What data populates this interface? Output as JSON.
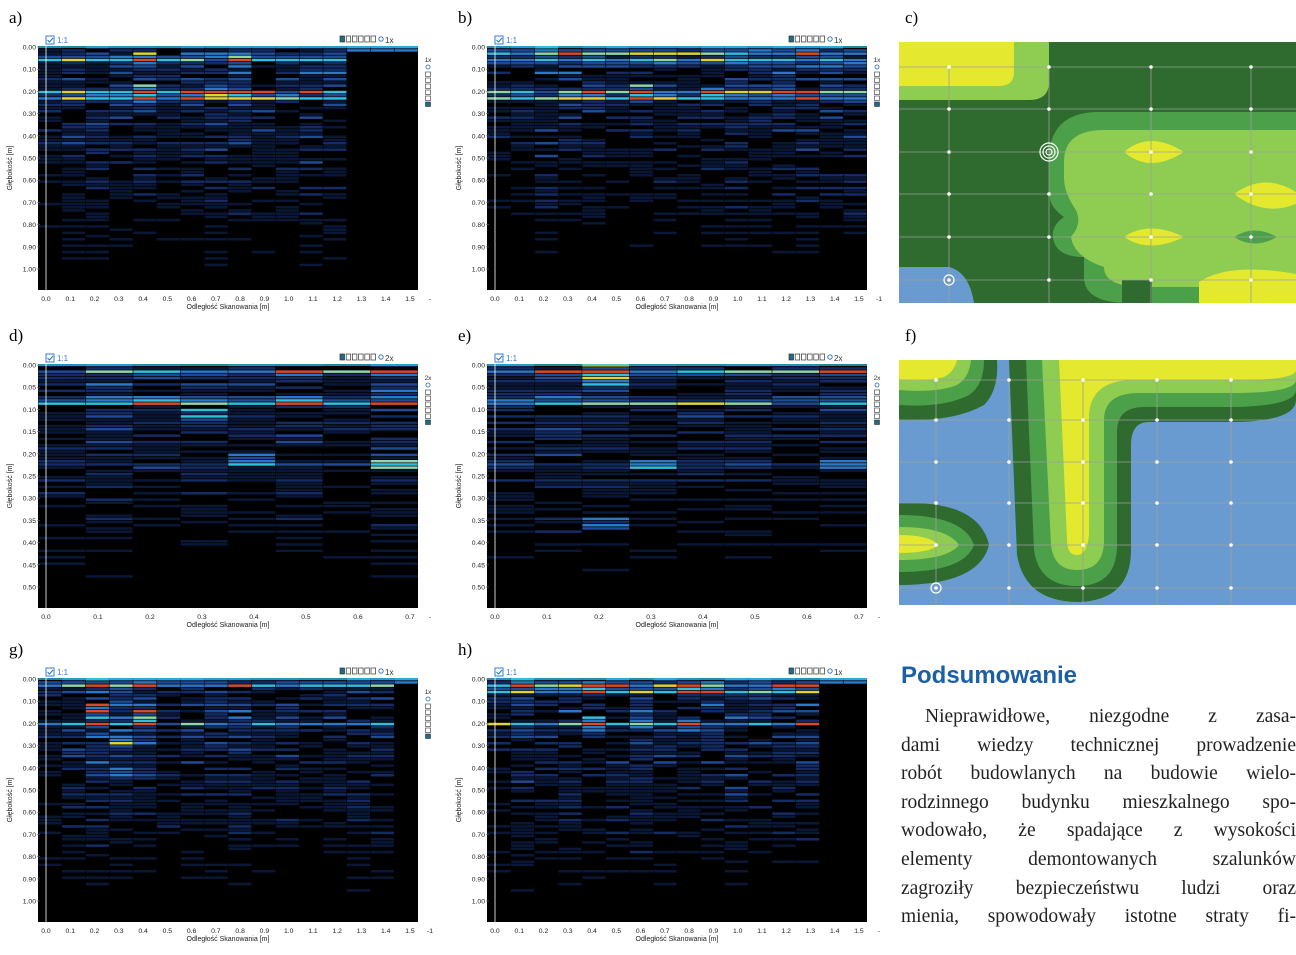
{
  "panels": [
    {
      "label": "a)",
      "ylabel": "Głębokość [m]",
      "xlabel": "Odległość Skanowania [m]",
      "checkbox": "1:1",
      "zoom": "1x",
      "yticks": [
        "0.00",
        "0.10",
        "0.20",
        "0.30",
        "0.40",
        "0.50",
        "0.60",
        "0.70",
        "0.80",
        "0.90",
        "1.00"
      ],
      "xticks": [
        "0.0",
        "0.1",
        "0.2",
        "0.3",
        "0.4",
        "0.5",
        "0.6",
        "0.7",
        "0.8",
        "0.9",
        "1.0",
        "1.1",
        "1.2",
        "1.3",
        "1.4",
        "1.5"
      ],
      "xend": "-",
      "ncols": 16,
      "dataCols": 13,
      "seed": 11,
      "hot": [
        {
          "c": 4,
          "r": 0.205,
          "k": 3
        },
        {
          "c": 8,
          "r": 0.205,
          "k": 2
        },
        {
          "c": 6,
          "r": 0.215,
          "k": 2
        },
        {
          "c": 4,
          "r": 0.05,
          "k": 2
        },
        {
          "c": 8,
          "r": 0.05,
          "k": 2
        },
        {
          "c": 7,
          "r": 0.2,
          "k": 2
        }
      ],
      "bands": [
        0.05,
        0.2,
        0.22
      ],
      "side": true
    },
    {
      "label": "b)",
      "ylabel": "Głębokość [m]",
      "xlabel": "Odległość Skanowania [m]",
      "checkbox": "1:1",
      "zoom": "1x",
      "yticks": [
        "0.00",
        "0.10",
        "0.20",
        "0.30",
        "0.40",
        "0.50",
        "0.60",
        "0.70",
        "0.80",
        "0.90",
        "1.00"
      ],
      "xticks": [
        "0.0",
        "0.1",
        "0.2",
        "0.3",
        "0.4",
        "0.5",
        "0.6",
        "0.7",
        "0.8",
        "0.9",
        "1.0",
        "1.1",
        "1.2",
        "1.3",
        "1.4",
        "1.5"
      ],
      "xend": "-1",
      "ncols": 16,
      "dataCols": 16,
      "seed": 23,
      "hot": [
        {
          "c": 6,
          "r": 0.205,
          "k": 3
        },
        {
          "c": 9,
          "r": 0.2,
          "k": 2
        },
        {
          "c": 4,
          "r": 0.205,
          "k": 2
        },
        {
          "c": 12,
          "r": 0.2,
          "k": 2
        }
      ],
      "bands": [
        0.02,
        0.06,
        0.2,
        0.22
      ],
      "side": true
    },
    {
      "label": "d)",
      "ylabel": "Głębokość [m]",
      "xlabel": "Odległość Skanowania [m]",
      "checkbox": "1:1",
      "zoom": "2x",
      "yticks": [
        "0.00",
        "0.05",
        "0.10",
        "0.15",
        "0.20",
        "0.25",
        "0.30",
        "0.35",
        "0.40",
        "0.45",
        "0.50"
      ],
      "xticks": [
        "0.0",
        "0.1",
        "0.2",
        "0.3",
        "0.4",
        "0.5",
        "0.6",
        "0.7"
      ],
      "xend": "-",
      "ncols": 8,
      "dataCols": 8,
      "seed": 37,
      "hot": [
        {
          "c": 3,
          "r": 0.11,
          "k": 2
        },
        {
          "c": 4,
          "r": 0.21,
          "k": 2
        },
        {
          "c": 7,
          "r": 0.22,
          "k": 2
        },
        {
          "c": 2,
          "r": 0.08,
          "k": 2
        },
        {
          "c": 5,
          "r": 0.08,
          "k": 2
        }
      ],
      "bands": [
        0.02,
        0.08,
        0.22
      ],
      "side": true
    },
    {
      "label": "e)",
      "ylabel": "Głębokość [m]",
      "xlabel": "Odległość Skanowania [m]",
      "checkbox": "1:1",
      "zoom": "2x",
      "yticks": [
        "0.00",
        "0.05",
        "0.10",
        "0.15",
        "0.20",
        "0.25",
        "0.30",
        "0.35",
        "0.40",
        "0.45",
        "0.50"
      ],
      "xticks": [
        "0.0",
        "0.1",
        "0.2",
        "0.3",
        "0.4",
        "0.5",
        "0.6",
        "0.7"
      ],
      "xend": "-",
      "ncols": 8,
      "dataCols": 8,
      "seed": 41,
      "hot": [
        {
          "c": 2,
          "r": 0.02,
          "k": 4
        },
        {
          "c": 2,
          "r": 0.35,
          "k": 2
        },
        {
          "c": 3,
          "r": 0.22,
          "k": 2
        },
        {
          "c": 7,
          "r": 0.22,
          "k": 2
        }
      ],
      "bands": [
        0.02,
        0.08,
        0.22
      ],
      "side": true
    },
    {
      "label": "g)",
      "ylabel": "Głębokość [m]",
      "xlabel": "Odległość Skanowania [m]",
      "checkbox": "1:1",
      "zoom": "1x",
      "yticks": [
        "0.00",
        "0.10",
        "0.20",
        "0.30",
        "0.40",
        "0.50",
        "0.60",
        "0.70",
        "0.80",
        "0.90",
        "1.00"
      ],
      "xticks": [
        "0.0",
        "0.1",
        "0.2",
        "0.3",
        "0.4",
        "0.5",
        "0.6",
        "0.7",
        "0.8",
        "0.9",
        "1.0",
        "1.1",
        "1.2",
        "1.3",
        "1.4",
        "1.5"
      ],
      "xend": "-1",
      "ncols": 16,
      "dataCols": 15,
      "seed": 53,
      "hot": [
        {
          "c": 2,
          "r": 0.14,
          "k": 3
        },
        {
          "c": 4,
          "r": 0.17,
          "k": 3
        },
        {
          "c": 3,
          "r": 0.28,
          "k": 2
        },
        {
          "c": 3,
          "r": 0.4,
          "k": 1
        }
      ],
      "bands": [
        0.02,
        0.2
      ],
      "side": true,
      "gstyle": true
    },
    {
      "label": "h)",
      "ylabel": "Głębokość [m]",
      "xlabel": "Odległość Skanowania [m]",
      "checkbox": "1:1",
      "zoom": "1x",
      "yticks": [
        "0.00",
        "0.10",
        "0.20",
        "0.30",
        "0.40",
        "0.50",
        "0.60",
        "0.70",
        "0.80",
        "0.90",
        "1.00"
      ],
      "xticks": [
        "0.0",
        "0.1",
        "0.2",
        "0.3",
        "0.4",
        "0.5",
        "0.6",
        "0.7",
        "0.8",
        "0.9",
        "1.0",
        "1.1",
        "1.2",
        "1.3",
        "1.4",
        "1.5"
      ],
      "xend": "-",
      "ncols": 16,
      "dataCols": 14,
      "seed": 67,
      "hot": [
        {
          "c": 4,
          "r": 0.205,
          "k": 3
        },
        {
          "c": 8,
          "r": 0.205,
          "k": 2
        },
        {
          "c": 4,
          "r": 0.05,
          "k": 2
        },
        {
          "c": 8,
          "r": 0.05,
          "k": 2
        },
        {
          "c": 6,
          "r": 0.2,
          "k": 2
        }
      ],
      "bands": [
        0.02,
        0.05,
        0.2
      ],
      "side": false
    }
  ],
  "maps": [
    {
      "label": "c)"
    },
    {
      "label": "f)"
    }
  ],
  "summary": {
    "heading": "Podsumowanie",
    "lines": [
      "Nieprawidłowe, niezgodne z zasa-",
      "dami wiedzy technicznej prowadzenie",
      "robót budowlanych na budowie wielo-",
      "rodzinnego budynku mieszkalnego spo-",
      "wodowało, że spadające z wysokości",
      "elementy demontowanych szalunków",
      "zagroziły bezpieczeństwu ludzi oraz",
      "mienia, spowodowały istotne straty fi-"
    ]
  },
  "colors": {
    "mapDark": "#2f6b2f",
    "mapMid": "#4da04a",
    "mapLight": "#8fcc52",
    "mapYellow": "#e4e82e",
    "mapBlue": "#6a9bd0",
    "heading": "#1d5fa4"
  }
}
